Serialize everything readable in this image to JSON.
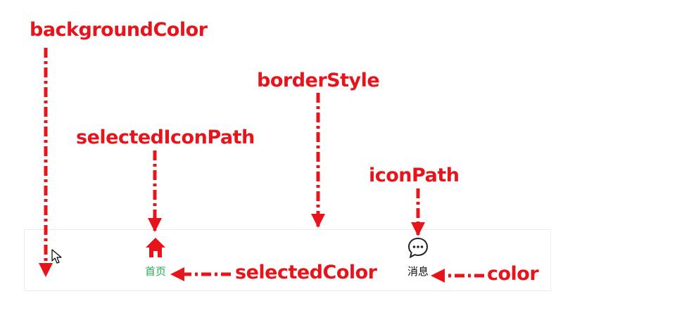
{
  "annotations": {
    "background_color": "backgroundColor",
    "border_style": "borderStyle",
    "selected_icon_path": "selectedIconPath",
    "icon_path": "iconPath",
    "selected_color": "selectedColor",
    "color": "color"
  },
  "tabbar": {
    "tabs": [
      {
        "label": "首页",
        "icon": "home-icon",
        "selected": true
      },
      {
        "label": "消息",
        "icon": "chat-bubble-icon",
        "selected": false
      }
    ]
  },
  "colors": {
    "annotation": "#e8141b",
    "selected_label": "#22b14c",
    "selected_icon": "#e8141b",
    "label": "#111111",
    "border": "#ebebeb"
  }
}
